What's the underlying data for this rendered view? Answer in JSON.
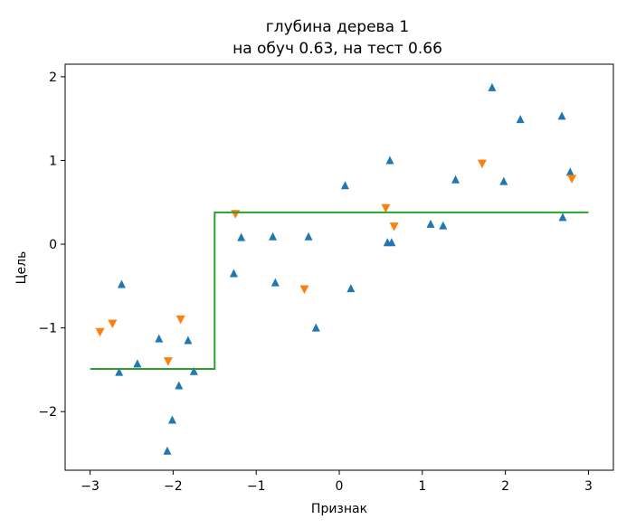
{
  "chart_data": {
    "type": "scatter",
    "title": "глубина дерева 1",
    "subtitle": "на обуч 0.63, на тест 0.66",
    "xlabel": "Признак",
    "ylabel": "Цель",
    "xlim": [
      -3.3,
      3.3
    ],
    "ylim": [
      -2.7,
      2.15
    ],
    "x_ticks": [
      -3,
      -2,
      -1,
      0,
      1,
      2,
      3
    ],
    "y_ticks": [
      -2,
      -1,
      0,
      1,
      2
    ],
    "x_tick_labels": [
      "−3",
      "−2",
      "−1",
      "0",
      "1",
      "2",
      "3"
    ],
    "y_tick_labels": [
      "−2",
      "−1",
      "0",
      "1",
      "2"
    ],
    "grid": false,
    "series": [
      {
        "marker": "triangle-up",
        "color": "#1f77b4",
        "points": [
          [
            -2.62,
            -0.48
          ],
          [
            -2.65,
            -1.53
          ],
          [
            -2.43,
            -1.43
          ],
          [
            -2.17,
            -1.13
          ],
          [
            -2.07,
            -2.47
          ],
          [
            -2.01,
            -2.1
          ],
          [
            -1.93,
            -1.69
          ],
          [
            -1.82,
            -1.15
          ],
          [
            -1.75,
            -1.52
          ],
          [
            -1.27,
            -0.35
          ],
          [
            -1.18,
            0.08
          ],
          [
            -0.8,
            0.09
          ],
          [
            -0.77,
            -0.46
          ],
          [
            -0.37,
            0.09
          ],
          [
            -0.28,
            -1.0
          ],
          [
            0.07,
            0.7
          ],
          [
            0.14,
            -0.53
          ],
          [
            0.58,
            0.02
          ],
          [
            0.61,
            1.0
          ],
          [
            0.63,
            0.02
          ],
          [
            1.1,
            0.24
          ],
          [
            1.25,
            0.22
          ],
          [
            1.4,
            0.77
          ],
          [
            1.84,
            1.87
          ],
          [
            1.98,
            0.75
          ],
          [
            2.18,
            1.49
          ],
          [
            2.68,
            1.53
          ],
          [
            2.69,
            0.32
          ],
          [
            2.78,
            0.86
          ]
        ]
      },
      {
        "marker": "triangle-down",
        "color": "#ff7f0e",
        "points": [
          [
            -2.88,
            -1.05
          ],
          [
            -2.73,
            -0.95
          ],
          [
            -2.06,
            -1.4
          ],
          [
            -1.91,
            -0.9
          ],
          [
            -1.25,
            0.36
          ],
          [
            -0.42,
            -0.54
          ],
          [
            0.56,
            0.43
          ],
          [
            0.66,
            0.21
          ],
          [
            1.72,
            0.96
          ],
          [
            2.8,
            0.78
          ]
        ]
      },
      {
        "marker": "line",
        "color": "#2ca02c",
        "step_x": [
          -3.0,
          -1.5,
          -1.5,
          3.0
        ],
        "step_y": [
          -1.49,
          -1.49,
          0.38,
          0.38
        ]
      }
    ]
  }
}
